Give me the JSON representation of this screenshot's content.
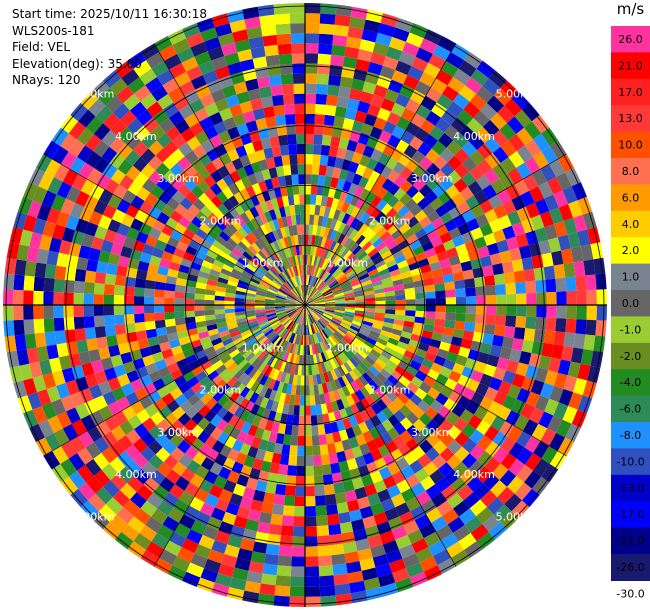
{
  "info": {
    "start_time": "Start time: 2025/10/11 16:30:18",
    "site": "WLS200s-181",
    "field": "Field: VEL",
    "elevation": "Elevation(deg): 35.00",
    "nrays": "NRays: 120"
  },
  "chart_data": {
    "type": "heatmap",
    "projection": "polar-ppi",
    "field": "VEL",
    "unit": "m/s",
    "nrays": 120,
    "elevation_deg": 35.0,
    "range_rings_km": [
      1,
      2,
      3,
      4,
      5
    ],
    "range_ring_labels": [
      "1.00km",
      "2.00km",
      "3.00km",
      "4.00km",
      "5.00km"
    ],
    "max_range_km": 5.0,
    "colorbar": {
      "ticks": [
        "26.0",
        "21.0",
        "17.0",
        "13.0",
        "10.0",
        "8.0",
        "6.0",
        "4.0",
        "2.0",
        "1.0",
        "0.0",
        "-1.0",
        "-2.0",
        "-4.0",
        "-6.0",
        "-8.0",
        "-10.0",
        "-13.0",
        "-17.0",
        "-21.0",
        "-26.0",
        "-30.0"
      ],
      "colors": [
        "#ff33a0",
        "#ff0000",
        "#ff2020",
        "#ff3838",
        "#ff5000",
        "#ff7050",
        "#ff9a00",
        "#ffcc00",
        "#ffff00",
        "#7a8490",
        "#666666",
        "#9acd32",
        "#6b8e23",
        "#228b22",
        "#2e8b57",
        "#1e90ff",
        "#3050c0",
        "#0000cd",
        "#0000ff",
        "#00008b",
        "#191970"
      ]
    }
  }
}
